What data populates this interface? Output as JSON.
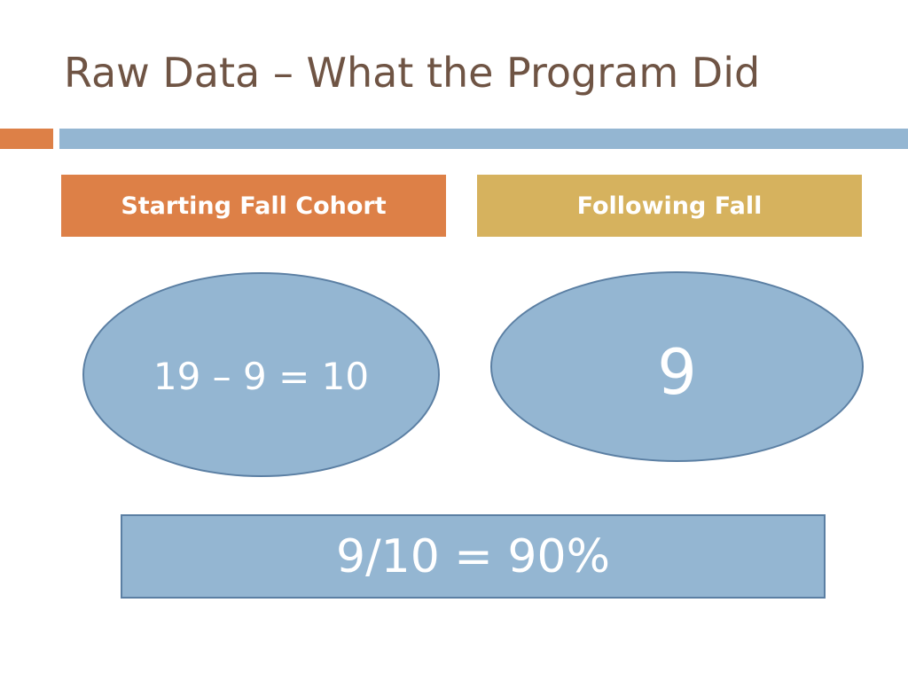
{
  "slide": {
    "title": "Raw Data – What the Program Did"
  },
  "colors": {
    "title_text": "#6f5444",
    "accent_orange": "#dd8047",
    "accent_blue": "#94b6d2",
    "following_gold": "#d6b25e",
    "shape_border": "#5b7fa3"
  },
  "headers": {
    "left_label": "Starting Fall Cohort",
    "right_label": "Following Fall"
  },
  "ovals": {
    "left_text": "19 – 9 = 10",
    "right_text": "9"
  },
  "result": {
    "text": "9/10 = 90%"
  }
}
